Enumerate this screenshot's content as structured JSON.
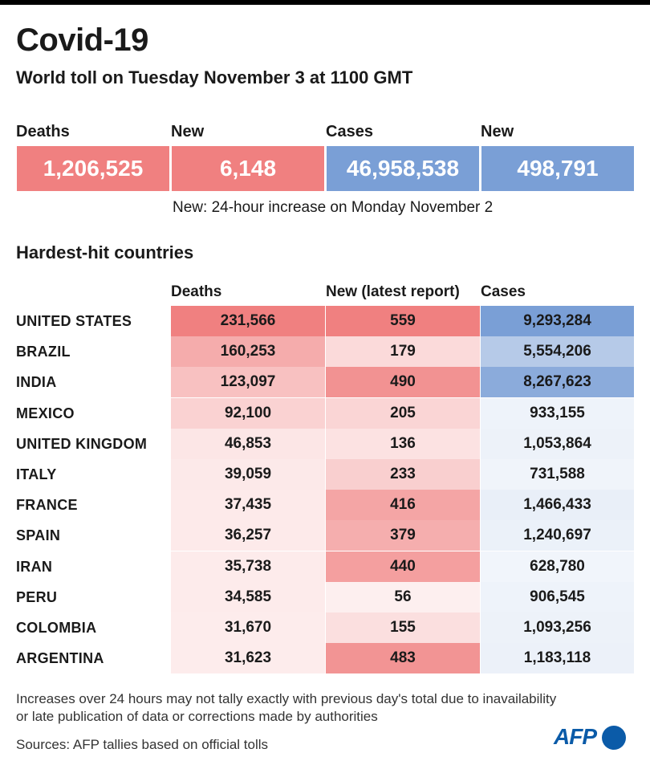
{
  "header": {
    "title": "Covid-19",
    "subtitle": "World toll on Tuesday November 3 at 1100 GMT"
  },
  "summary": [
    {
      "label": "Deaths",
      "value": "1,206,525",
      "color": "#f08080"
    },
    {
      "label": "New",
      "value": "6,148",
      "color": "#f08080"
    },
    {
      "label": "Cases",
      "value": "46,958,538",
      "color": "#7a9fd6"
    },
    {
      "label": "New",
      "value": "498,791",
      "color": "#7a9fd6"
    }
  ],
  "note": "New: 24-hour increase on Monday November 2",
  "section_title": "Hardest-hit countries",
  "chart_data": {
    "type": "table",
    "title": "Hardest-hit countries",
    "columns": [
      "Deaths",
      "New (latest report)",
      "Cases"
    ],
    "rows": [
      {
        "country": "UNITED STATES",
        "deaths": 231566,
        "new": 559,
        "cases": 9293284,
        "deaths_label": "231,566",
        "new_label": "559",
        "cases_label": "9,293,284"
      },
      {
        "country": "BRAZIL",
        "deaths": 160253,
        "new": 179,
        "cases": 5554206,
        "deaths_label": "160,253",
        "new_label": "179",
        "cases_label": "5,554,206"
      },
      {
        "country": "INDIA",
        "deaths": 123097,
        "new": 490,
        "cases": 8267623,
        "deaths_label": "123,097",
        "new_label": "490",
        "cases_label": "8,267,623"
      },
      {
        "country": "MEXICO",
        "deaths": 92100,
        "new": 205,
        "cases": 933155,
        "deaths_label": "92,100",
        "new_label": "205",
        "cases_label": "933,155"
      },
      {
        "country": "UNITED KINGDOM",
        "deaths": 46853,
        "new": 136,
        "cases": 1053864,
        "deaths_label": "46,853",
        "new_label": "136",
        "cases_label": "1,053,864"
      },
      {
        "country": "ITALY",
        "deaths": 39059,
        "new": 233,
        "cases": 731588,
        "deaths_label": "39,059",
        "new_label": "233",
        "cases_label": "731,588"
      },
      {
        "country": "FRANCE",
        "deaths": 37435,
        "new": 416,
        "cases": 1466433,
        "deaths_label": "37,435",
        "new_label": "416",
        "cases_label": "1,466,433"
      },
      {
        "country": "SPAIN",
        "deaths": 36257,
        "new": 379,
        "cases": 1240697,
        "deaths_label": "36,257",
        "new_label": "379",
        "cases_label": "1,240,697"
      },
      {
        "country": "IRAN",
        "deaths": 35738,
        "new": 440,
        "cases": 628780,
        "deaths_label": "35,738",
        "new_label": "440",
        "cases_label": "628,780"
      },
      {
        "country": "PERU",
        "deaths": 34585,
        "new": 56,
        "cases": 906545,
        "deaths_label": "34,585",
        "new_label": "56",
        "cases_label": "906,545"
      },
      {
        "country": "COLOMBIA",
        "deaths": 31670,
        "new": 155,
        "cases": 1093256,
        "deaths_label": "31,670",
        "new_label": "155",
        "cases_label": "1,093,256"
      },
      {
        "country": "ARGENTINA",
        "deaths": 31623,
        "new": 483,
        "cases": 1183118,
        "deaths_label": "31,623",
        "new_label": "483",
        "cases_label": "1,183,118"
      }
    ]
  },
  "footnote_1": "Increases over 24 hours may not tally exactly with previous day's total due to inavailability",
  "footnote_2": "or late publication of data or corrections made by authorities",
  "sources": "Sources:  AFP tallies based on official tolls",
  "logo": "AFP",
  "colors": {
    "red": "#f08080",
    "blue": "#7a9fd6"
  }
}
